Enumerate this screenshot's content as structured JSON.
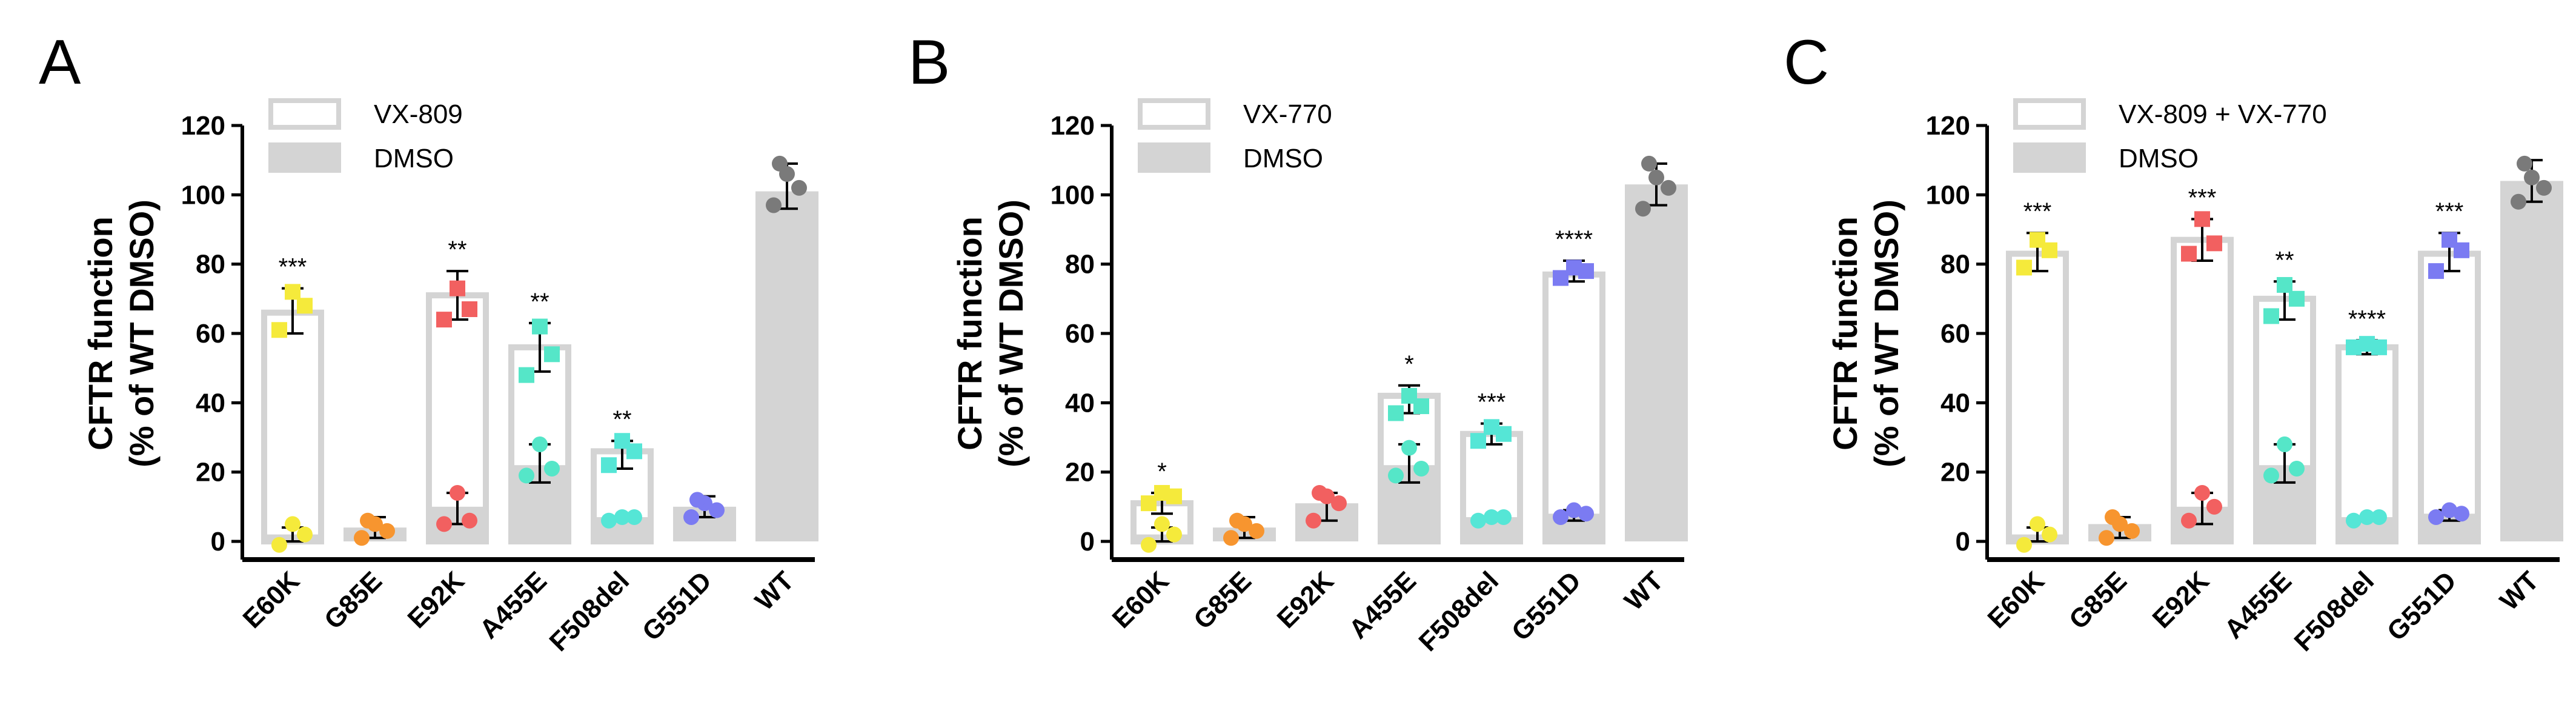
{
  "chart_data": [
    {
      "type": "bar",
      "panel": "A",
      "ylabel_line1": "CFTR function",
      "ylabel_line2": "(% of WT DMSO)",
      "ylim": [
        0,
        120
      ],
      "yticks": [
        "0",
        "20",
        "40",
        "60",
        "80",
        "100",
        "120"
      ],
      "categories": [
        "E60K",
        "G85E",
        "E92K",
        "A455E",
        "F508del",
        "G551D",
        "WT"
      ],
      "point_colors": [
        "#f5ea3b",
        "#f7952f",
        "#f26060",
        "#55e6c8",
        "#55e6d6",
        "#7b7bf2",
        "#7a7a7a"
      ],
      "series": [
        {
          "name": "VX-809",
          "values": [
            66,
            null,
            71,
            56,
            26,
            null,
            null
          ]
        },
        {
          "name": "DMSO",
          "values": [
            2,
            4,
            10,
            22,
            7,
            10,
            101
          ]
        }
      ],
      "points": {
        "VX-809": [
          [
            61,
            68,
            72
          ],
          [],
          [
            64,
            67,
            73
          ],
          [
            48,
            54,
            62
          ],
          [
            22,
            26,
            29
          ],
          [],
          []
        ],
        "DMSO": [
          [
            -1,
            2,
            5
          ],
          [
            1,
            3,
            5,
            6
          ],
          [
            5,
            6,
            14
          ],
          [
            19,
            21,
            28
          ],
          [
            6,
            7,
            7
          ],
          [
            7,
            9,
            11,
            12
          ],
          [
            97,
            102,
            106,
            109
          ]
        ]
      },
      "error": {
        "VX-809": [
          [
            60,
            73
          ],
          null,
          [
            64,
            78
          ],
          [
            49,
            63
          ],
          [
            21,
            29
          ],
          null,
          null
        ],
        "DMSO": [
          [
            0,
            4
          ],
          [
            1,
            7
          ],
          [
            5,
            14
          ],
          [
            17,
            28
          ],
          [
            6,
            7
          ],
          [
            7,
            13
          ],
          [
            96,
            109
          ]
        ]
      },
      "significance": [
        "***",
        "",
        "**",
        "**",
        "**",
        "",
        ""
      ],
      "legend": [
        {
          "label": "VX-809"
        },
        {
          "label": "DMSO"
        }
      ]
    },
    {
      "type": "bar",
      "panel": "B",
      "ylabel_line1": "CFTR function",
      "ylabel_line2": "(% of WT DMSO)",
      "ylim": [
        0,
        120
      ],
      "yticks": [
        "0",
        "20",
        "40",
        "60",
        "80",
        "100",
        "120"
      ],
      "categories": [
        "E60K",
        "G85E",
        "E92K",
        "A455E",
        "F508del",
        "G551D",
        "WT"
      ],
      "point_colors": [
        "#f5ea3b",
        "#f7952f",
        "#f26060",
        "#55e6c8",
        "#55e6d6",
        "#7b7bf2",
        "#7a7a7a"
      ],
      "series": [
        {
          "name": "VX-770",
          "values": [
            11,
            null,
            null,
            42,
            31,
            77,
            null
          ]
        },
        {
          "name": "DMSO",
          "values": [
            2,
            4,
            11,
            22,
            7,
            8,
            103
          ]
        }
      ],
      "points": {
        "VX-770": [
          [
            11,
            13,
            14
          ],
          [],
          [],
          [
            37,
            39,
            42
          ],
          [
            29,
            31,
            33
          ],
          [
            76,
            78,
            79
          ],
          []
        ],
        "DMSO": [
          [
            -1,
            2,
            5
          ],
          [
            1,
            3,
            5,
            6
          ],
          [
            6,
            11,
            13,
            14
          ],
          [
            19,
            21,
            27
          ],
          [
            6,
            7,
            7
          ],
          [
            7,
            8,
            9
          ],
          [
            96,
            102,
            105,
            109
          ]
        ]
      },
      "error": {
        "VX-770": [
          [
            8,
            14
          ],
          null,
          null,
          [
            37,
            45
          ],
          [
            28,
            34
          ],
          [
            75,
            81
          ],
          null
        ],
        "DMSO": [
          [
            0,
            4
          ],
          [
            1,
            7
          ],
          [
            6,
            14
          ],
          [
            17,
            28
          ],
          [
            6,
            7
          ],
          [
            6,
            9
          ],
          [
            97,
            109
          ]
        ]
      },
      "significance": [
        "*",
        "",
        "",
        "*",
        "***",
        "****",
        ""
      ],
      "legend": [
        {
          "label": "VX-770"
        },
        {
          "label": "DMSO"
        }
      ]
    },
    {
      "type": "bar",
      "panel": "C",
      "ylabel_line1": "CFTR function",
      "ylabel_line2": "(% of WT DMSO)",
      "ylim": [
        0,
        120
      ],
      "yticks": [
        "0",
        "20",
        "40",
        "60",
        "80",
        "100",
        "120"
      ],
      "categories": [
        "E60K",
        "G85E",
        "E92K",
        "A455E",
        "F508del",
        "G551D",
        "WT"
      ],
      "point_colors": [
        "#f5ea3b",
        "#f7952f",
        "#f26060",
        "#55e6c8",
        "#55e6d6",
        "#7b7bf2",
        "#7a7a7a"
      ],
      "series": [
        {
          "name": "VX-809 + VX-770",
          "values": [
            83,
            null,
            87,
            70,
            56,
            83,
            null
          ]
        },
        {
          "name": "DMSO",
          "values": [
            2,
            5,
            10,
            22,
            7,
            8,
            104
          ]
        }
      ],
      "points": {
        "VX-809 + VX-770": [
          [
            79,
            84,
            87
          ],
          [],
          [
            83,
            86,
            93
          ],
          [
            65,
            70,
            74
          ],
          [
            56,
            56,
            57
          ],
          [
            78,
            84,
            87
          ],
          []
        ],
        "DMSO": [
          [
            -1,
            2,
            5
          ],
          [
            1,
            3,
            5,
            7
          ],
          [
            6,
            10,
            14
          ],
          [
            19,
            21,
            28
          ],
          [
            6,
            7,
            7
          ],
          [
            7,
            8,
            9
          ],
          [
            98,
            102,
            105,
            109
          ]
        ]
      },
      "error": {
        "VX-809 + VX-770": [
          [
            78,
            89
          ],
          null,
          [
            81,
            93
          ],
          [
            64,
            75
          ],
          [
            54,
            58
          ],
          [
            78,
            89
          ],
          null
        ],
        "DMSO": [
          [
            0,
            4
          ],
          [
            1,
            7
          ],
          [
            5,
            14
          ],
          [
            17,
            28
          ],
          [
            6,
            7
          ],
          [
            6,
            9
          ],
          [
            98,
            110
          ]
        ]
      },
      "significance": [
        "***",
        "",
        "***",
        "**",
        "****",
        "***",
        ""
      ],
      "legend": [
        {
          "label": "VX-809 + VX-770"
        },
        {
          "label": "DMSO"
        }
      ]
    }
  ]
}
